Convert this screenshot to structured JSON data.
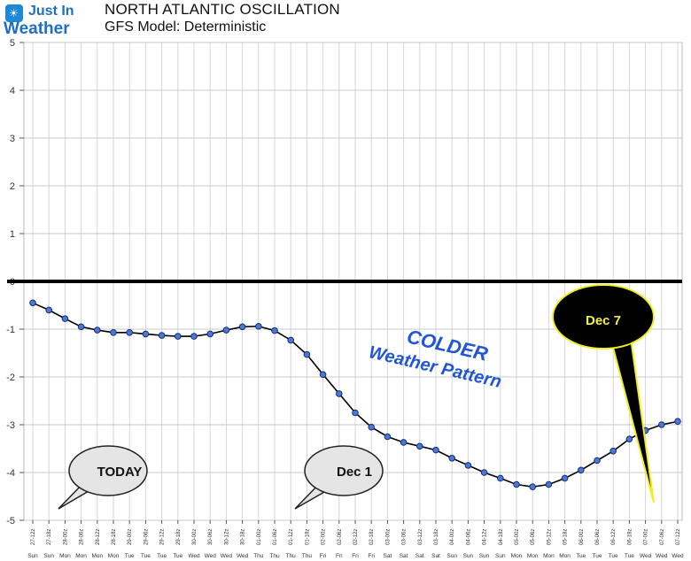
{
  "header": {
    "logo_line1": "Just In",
    "logo_line2": "Weather",
    "title": "NORTH ATLANTIC OSCILLATION",
    "subtitle": "GFS Model: Deterministic"
  },
  "chart_data": {
    "type": "line",
    "title": "NORTH ATLANTIC OSCILLATION",
    "subtitle": "GFS Model: Deterministic",
    "xlabel": "",
    "ylabel": "",
    "ylim": [
      -5,
      5
    ],
    "yticks": [
      5,
      4,
      3,
      2,
      1,
      0,
      -1,
      -2,
      -3,
      -4,
      -5
    ],
    "grid": true,
    "x": [
      "27-12z",
      "27-18z",
      "28-00z",
      "28-06z",
      "28-12z",
      "28-18z",
      "29-00z",
      "29-06z",
      "29-12z",
      "29-18z",
      "30-00z",
      "30-06z",
      "30-12z",
      "30-18z",
      "01-00z",
      "01-06z",
      "01-12z",
      "01-18z",
      "02-00z",
      "02-06z",
      "02-12z",
      "02-18z",
      "03-00z",
      "03-06z",
      "03-12z",
      "03-18z",
      "04-00z",
      "04-06z",
      "04-12z",
      "04-18z",
      "05-00z",
      "05-06z",
      "05-12z",
      "05-18z",
      "06-00z",
      "06-06z",
      "06-12z",
      "06-18z",
      "07-00z",
      "07-06z",
      "07-12z"
    ],
    "x_days": [
      "Sun",
      "Sun",
      "Mon",
      "Mon",
      "Mon",
      "Mon",
      "Tue",
      "Tue",
      "Tue",
      "Tue",
      "Wed",
      "Wed",
      "Wed",
      "Wed",
      "Thu",
      "Thu",
      "Thu",
      "Thu",
      "Fri",
      "Fri",
      "Fri",
      "Fri",
      "Sat",
      "Sat",
      "Sat",
      "Sat",
      "Sun",
      "Sun",
      "Sun",
      "Sun",
      "Mon",
      "Mon",
      "Mon",
      "Mon",
      "Tue",
      "Tue",
      "Tue",
      "Tue",
      "Wed",
      "Wed",
      "Wed"
    ],
    "series": [
      {
        "values": [
          -0.45,
          -0.6,
          -0.78,
          -0.95,
          -1.02,
          -1.07,
          -1.07,
          -1.1,
          -1.13,
          -1.15,
          -1.15,
          -1.1,
          -1.02,
          -0.95,
          -0.94,
          -1.03,
          -1.23,
          -1.53,
          -1.95,
          -2.35,
          -2.75,
          -3.05,
          -3.25,
          -3.37,
          -3.45,
          -3.53,
          -3.7,
          -3.85,
          -4.0,
          -4.12,
          -4.25,
          -4.3,
          -4.25,
          -4.12,
          -3.95,
          -3.75,
          -3.55,
          -3.3,
          -3.12,
          -3.0,
          -2.93
        ],
        "color": "#4a78d8"
      }
    ],
    "zero_line": true,
    "annotations": {
      "today": "TODAY",
      "dec1": "Dec 1",
      "dec7": "Dec 7",
      "colder_line1": "COLDER",
      "colder_line2": "Weather Pattern"
    },
    "colors": {
      "line": "#000000",
      "marker_fill": "#4a78d8",
      "colder_text": "#1f55d6",
      "callout_fill": "#e5e5e5",
      "dec7_fill": "#000000",
      "dec7_text": "#f5f03a",
      "dec7_border": "#f2ee1a"
    }
  }
}
